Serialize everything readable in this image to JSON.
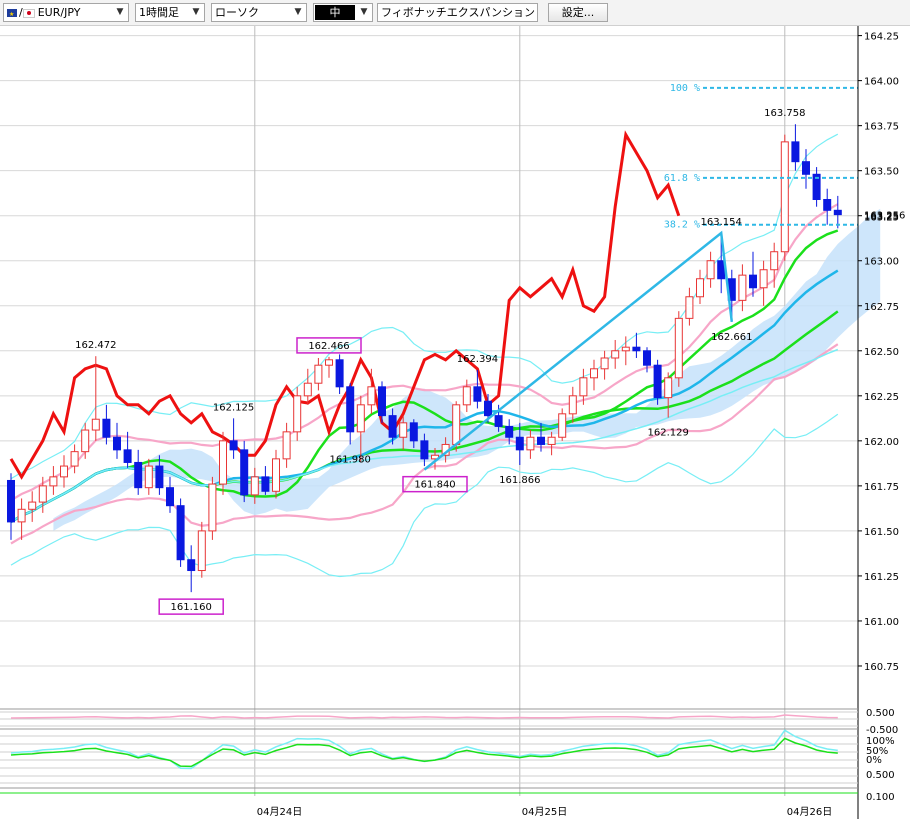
{
  "toolbar": {
    "pair": "EUR/JPY",
    "pair_prefix": "/",
    "timeframe": "1時間足",
    "chart_type": "ローソク",
    "line_width": "中",
    "drawing_tool": "フィボナッチエクスパンション",
    "settings_label": "設定..."
  },
  "colors": {
    "bull_candle": "#e83535",
    "bear_candle": "#0a18e0",
    "ma_red": "#ee1111",
    "ma_green": "#1be01b",
    "ma_blue": "#1fb6ea",
    "bollinger_pink": "#f7a6c8",
    "bollinger_cyan": "#78eef5",
    "cloud": "#c6e2fa",
    "fib": "#2fb8e6",
    "label_box": "#cc22cc"
  },
  "chart_data": {
    "type": "candlestick",
    "symbol": "EUR/JPY",
    "y_ticks": [
      "164.25",
      "164.00",
      "163.75",
      "163.50",
      "163.25",
      "163.00",
      "162.75",
      "162.50",
      "162.25",
      "162.00",
      "161.75",
      "161.50",
      "161.25",
      "161.00",
      "160.75"
    ],
    "ylim": [
      160.55,
      164.27
    ],
    "date_labels": [
      "04月24日",
      "04月25日",
      "04月26日"
    ],
    "current_price": "163.256",
    "current_price_2": "163.25",
    "candles": [
      [
        161.78,
        161.82,
        161.45,
        161.55
      ],
      [
        161.55,
        161.68,
        161.45,
        161.62
      ],
      [
        161.62,
        161.72,
        161.55,
        161.66
      ],
      [
        161.66,
        161.8,
        161.6,
        161.75
      ],
      [
        161.75,
        161.86,
        161.7,
        161.8
      ],
      [
        161.8,
        161.92,
        161.74,
        161.86
      ],
      [
        161.86,
        161.98,
        161.82,
        161.94
      ],
      [
        161.94,
        162.1,
        161.9,
        162.06
      ],
      [
        162.06,
        162.47,
        162.0,
        162.12
      ],
      [
        162.12,
        162.2,
        161.98,
        162.02
      ],
      [
        162.02,
        162.1,
        161.9,
        161.95
      ],
      [
        161.95,
        162.05,
        161.85,
        161.88
      ],
      [
        161.88,
        161.95,
        161.7,
        161.74
      ],
      [
        161.74,
        161.9,
        161.7,
        161.86
      ],
      [
        161.86,
        161.92,
        161.7,
        161.74
      ],
      [
        161.74,
        161.8,
        161.6,
        161.64
      ],
      [
        161.64,
        161.68,
        161.3,
        161.34
      ],
      [
        161.34,
        161.42,
        161.16,
        161.28
      ],
      [
        161.28,
        161.55,
        161.24,
        161.5
      ],
      [
        161.5,
        161.8,
        161.45,
        161.76
      ],
      [
        161.76,
        162.05,
        161.7,
        162.0
      ],
      [
        162.0,
        162.125,
        161.9,
        161.95
      ],
      [
        161.95,
        162.0,
        161.66,
        161.7
      ],
      [
        161.7,
        161.85,
        161.65,
        161.8
      ],
      [
        161.8,
        161.86,
        161.7,
        161.72
      ],
      [
        161.72,
        161.95,
        161.68,
        161.9
      ],
      [
        161.9,
        162.1,
        161.85,
        162.05
      ],
      [
        162.05,
        162.3,
        162.0,
        162.25
      ],
      [
        162.25,
        162.4,
        162.2,
        162.32
      ],
      [
        162.32,
        162.46,
        162.28,
        162.42
      ],
      [
        162.42,
        162.466,
        162.35,
        162.45
      ],
      [
        162.45,
        162.48,
        162.26,
        162.3
      ],
      [
        162.3,
        162.32,
        161.98,
        162.05
      ],
      [
        162.05,
        162.25,
        161.88,
        162.2
      ],
      [
        162.2,
        162.4,
        162.15,
        162.3
      ],
      [
        162.3,
        162.33,
        162.1,
        162.14
      ],
      [
        162.14,
        162.18,
        161.98,
        162.02
      ],
      [
        162.02,
        162.14,
        161.95,
        162.1
      ],
      [
        162.1,
        162.12,
        161.96,
        162.0
      ],
      [
        162.0,
        162.04,
        161.86,
        161.9
      ],
      [
        161.9,
        161.96,
        161.84,
        161.92
      ],
      [
        161.92,
        162.02,
        161.88,
        161.98
      ],
      [
        161.98,
        162.22,
        161.94,
        162.2
      ],
      [
        162.2,
        162.34,
        162.16,
        162.3
      ],
      [
        162.3,
        162.394,
        162.18,
        162.22
      ],
      [
        162.22,
        162.26,
        162.1,
        162.14
      ],
      [
        162.14,
        162.2,
        162.05,
        162.08
      ],
      [
        162.08,
        162.12,
        161.98,
        162.02
      ],
      [
        162.02,
        162.1,
        161.866,
        161.95
      ],
      [
        161.95,
        162.06,
        161.9,
        162.02
      ],
      [
        162.02,
        162.1,
        161.94,
        161.98
      ],
      [
        161.98,
        162.05,
        161.92,
        162.02
      ],
      [
        162.02,
        162.18,
        162.0,
        162.15
      ],
      [
        162.15,
        162.3,
        162.1,
        162.25
      ],
      [
        162.25,
        162.4,
        162.2,
        162.35
      ],
      [
        162.35,
        162.45,
        162.28,
        162.4
      ],
      [
        162.4,
        162.5,
        162.34,
        162.46
      ],
      [
        162.46,
        162.56,
        162.4,
        162.5
      ],
      [
        162.5,
        162.58,
        162.42,
        162.52
      ],
      [
        162.52,
        162.6,
        162.46,
        162.5
      ],
      [
        162.5,
        162.52,
        162.38,
        162.42
      ],
      [
        162.42,
        162.45,
        162.2,
        162.24
      ],
      [
        162.24,
        162.38,
        162.129,
        162.35
      ],
      [
        162.35,
        162.72,
        162.3,
        162.68
      ],
      [
        162.68,
        162.85,
        162.64,
        162.8
      ],
      [
        162.8,
        162.95,
        162.76,
        162.9
      ],
      [
        162.9,
        163.05,
        162.85,
        163.0
      ],
      [
        163.0,
        163.154,
        162.82,
        162.9
      ],
      [
        162.9,
        162.95,
        162.661,
        162.78
      ],
      [
        162.78,
        162.98,
        162.72,
        162.92
      ],
      [
        162.92,
        163.05,
        162.8,
        162.85
      ],
      [
        162.85,
        163.0,
        162.75,
        162.95
      ],
      [
        162.95,
        163.1,
        162.85,
        163.05
      ],
      [
        163.05,
        163.7,
        163.0,
        163.66
      ],
      [
        163.66,
        163.758,
        163.5,
        163.55
      ],
      [
        163.55,
        163.62,
        163.4,
        163.48
      ],
      [
        163.48,
        163.52,
        163.3,
        163.34
      ],
      [
        163.34,
        163.4,
        163.2,
        163.28
      ],
      [
        163.28,
        163.36,
        163.18,
        163.256
      ]
    ],
    "moving_average_red": [
      [
        0,
        161.9
      ],
      [
        1,
        161.8
      ],
      [
        2,
        161.9
      ],
      [
        3,
        162.0
      ],
      [
        4,
        162.15
      ],
      [
        5,
        162.05
      ],
      [
        6,
        162.35
      ],
      [
        7,
        162.4
      ],
      [
        8,
        162.42
      ],
      [
        9,
        162.4
      ],
      [
        10,
        162.25
      ],
      [
        11,
        162.2
      ],
      [
        12,
        162.2
      ],
      [
        13,
        162.15
      ],
      [
        14,
        162.22
      ],
      [
        15,
        162.25
      ],
      [
        16,
        162.15
      ],
      [
        17,
        162.1
      ],
      [
        18,
        162.15
      ],
      [
        19,
        162.05
      ],
      [
        20,
        162.02
      ],
      [
        21,
        161.98
      ],
      [
        22,
        161.92
      ],
      [
        23,
        161.92
      ],
      [
        24,
        162.0
      ],
      [
        25,
        162.2
      ],
      [
        26,
        162.3
      ],
      [
        27,
        162.22
      ],
      [
        28,
        162.21
      ],
      [
        29,
        162.25
      ],
      [
        30,
        162.05
      ],
      [
        31,
        162.2
      ],
      [
        32,
        162.3
      ],
      [
        33,
        162.45
      ],
      [
        34,
        162.35
      ],
      [
        35,
        162.1
      ],
      [
        36,
        162.05
      ],
      [
        37,
        162.15
      ],
      [
        38,
        162.3
      ],
      [
        39,
        162.45
      ],
      [
        40,
        162.48
      ],
      [
        41,
        162.45
      ],
      [
        42,
        162.5
      ],
      [
        43,
        162.45
      ],
      [
        44,
        162.4
      ],
      [
        45,
        162.2
      ],
      [
        46,
        162.25
      ],
      [
        47,
        162.78
      ],
      [
        48,
        162.85
      ],
      [
        49,
        162.8
      ],
      [
        50,
        162.85
      ],
      [
        51,
        162.9
      ],
      [
        52,
        162.8
      ],
      [
        53,
        162.95
      ],
      [
        54,
        162.75
      ],
      [
        55,
        162.72
      ],
      [
        56,
        162.8
      ],
      [
        57,
        163.3
      ],
      [
        58,
        163.7
      ],
      [
        59,
        163.6
      ],
      [
        60,
        163.5
      ],
      [
        61,
        163.35
      ],
      [
        62,
        163.42
      ],
      [
        63,
        163.25
      ]
    ],
    "fibonacci": {
      "tool": "フィボナッチエクスパンション",
      "levels": [
        {
          "label": "100 %",
          "price": 163.96
        },
        {
          "label": "61.8 %",
          "price": 163.46
        },
        {
          "label": "38.2 %",
          "price": 163.2
        }
      ]
    },
    "annotations": [
      {
        "text": "162.472",
        "i": 8,
        "price": 162.472,
        "pos": "above"
      },
      {
        "text": "162.125",
        "i": 21,
        "price": 162.125,
        "pos": "above"
      },
      {
        "text": "161.160",
        "i": 17,
        "price": 161.16,
        "pos": "below",
        "boxed": true
      },
      {
        "text": "162.466",
        "i": 30,
        "price": 162.466,
        "pos": "above",
        "boxed": true
      },
      {
        "text": "161.980",
        "i": 32,
        "price": 161.98,
        "pos": "below"
      },
      {
        "text": "162.394",
        "i": 44,
        "price": 162.394,
        "pos": "above"
      },
      {
        "text": "161.840",
        "i": 40,
        "price": 161.84,
        "pos": "below",
        "boxed": true
      },
      {
        "text": "161.866",
        "i": 48,
        "price": 161.866,
        "pos": "below"
      },
      {
        "text": "162.129",
        "i": 62,
        "price": 162.129,
        "pos": "below"
      },
      {
        "text": "163.154",
        "i": 67,
        "price": 163.154,
        "pos": "above"
      },
      {
        "text": "162.661",
        "i": 68,
        "price": 162.661,
        "pos": "below"
      },
      {
        "text": "163.758",
        "i": 73,
        "price": 163.758,
        "pos": "above"
      }
    ],
    "sub_panel_labels": [
      "0.500",
      "-0.500",
      "100%",
      "50%",
      "0%",
      "0.500",
      "0.100"
    ]
  }
}
